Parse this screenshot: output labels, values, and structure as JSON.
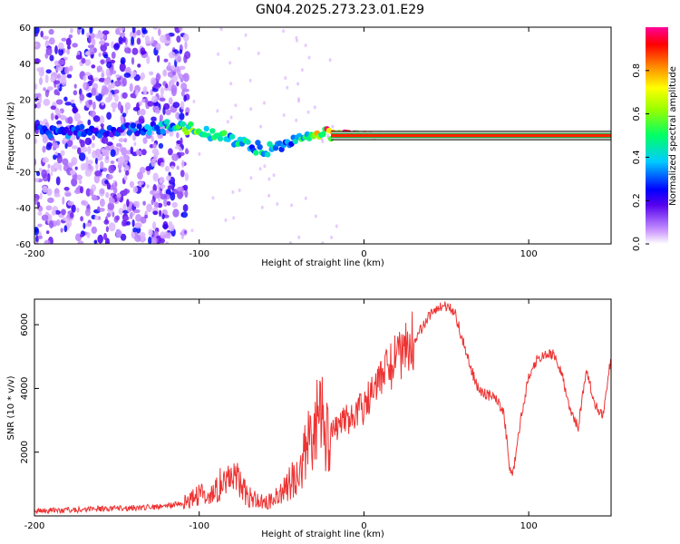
{
  "title": "GN04.2025.273.23.01.E29",
  "chart_data": [
    {
      "type": "heatmap",
      "xlabel": "Height of straight line (km)",
      "ylabel": "Frequency (Hz)",
      "xlim": [
        -200,
        150
      ],
      "ylim": [
        -60,
        60
      ],
      "xticks": [
        -200,
        -100,
        0,
        100
      ],
      "xtick_labels": [
        "-200",
        "-100",
        "0",
        "100"
      ],
      "yticks": [
        60,
        40,
        20,
        0,
        -20,
        -40,
        -60
      ],
      "ytick_labels": [
        "60",
        "40",
        "20",
        "0",
        "-20",
        "-40",
        "-60"
      ],
      "colorbar": {
        "label": "Normalized spectral amplitude",
        "range": [
          0,
          1
        ],
        "ticks": [
          0,
          0.2,
          0.4,
          0.6,
          0.8
        ],
        "tick_labels": [
          "0.0",
          "0.2",
          "0.4",
          "0.6",
          "0.8"
        ]
      },
      "ridge": {
        "x": [
          -200,
          -180,
          -150,
          -120,
          -100,
          -80,
          -60,
          -50,
          -40,
          -30,
          -20,
          -10,
          0,
          10,
          150
        ],
        "frequency": [
          2,
          2,
          3,
          5,
          3,
          -3,
          -8,
          -6,
          -3,
          1,
          1,
          1,
          0,
          0,
          0
        ],
        "amplitude": [
          0.25,
          0.3,
          0.25,
          0.4,
          0.6,
          0.45,
          0.4,
          0.35,
          0.4,
          0.7,
          0.85,
          0.9,
          0.95,
          1.0,
          1.0
        ]
      },
      "noise_region_x": [
        -200,
        -107
      ]
    },
    {
      "type": "line",
      "xlabel": "Height of straight line (km)",
      "ylabel": "SNR (10 * v/v)",
      "xlim": [
        -200,
        150
      ],
      "ylim": [
        0,
        6800
      ],
      "xticks": [
        -200,
        -100,
        0,
        100
      ],
      "xtick_labels": [
        "-200",
        "-100",
        "0",
        "100"
      ],
      "yticks": [
        2000,
        4000,
        6000
      ],
      "ytick_labels": [
        "2000",
        "4000",
        "6000"
      ],
      "color": "#ee3333",
      "series": [
        {
          "name": "SNR",
          "x": [
            -200,
            -180,
            -160,
            -140,
            -120,
            -110,
            -100,
            -90,
            -80,
            -75,
            -70,
            -60,
            -50,
            -45,
            -40,
            -35,
            -30,
            -25,
            -20,
            -15,
            -10,
            -5,
            0,
            5,
            10,
            15,
            20,
            25,
            30,
            35,
            40,
            45,
            50,
            55,
            60,
            65,
            70,
            75,
            80,
            85,
            88,
            90,
            95,
            100,
            105,
            110,
            115,
            120,
            125,
            130,
            135,
            140,
            145,
            150
          ],
          "y": [
            150,
            180,
            220,
            250,
            300,
            400,
            650,
            900,
            1200,
            1000,
            600,
            400,
            700,
            1100,
            1300,
            2100,
            2700,
            2900,
            2600,
            2900,
            3000,
            3200,
            3400,
            3800,
            4200,
            4700,
            5000,
            5300,
            5500,
            5900,
            6300,
            6500,
            6600,
            6400,
            5500,
            4600,
            3900,
            3800,
            3700,
            3200,
            1700,
            1200,
            3000,
            4400,
            4900,
            5100,
            5050,
            4500,
            3400,
            2800,
            4600,
            3500,
            3100,
            5000
          ]
        }
      ]
    }
  ]
}
